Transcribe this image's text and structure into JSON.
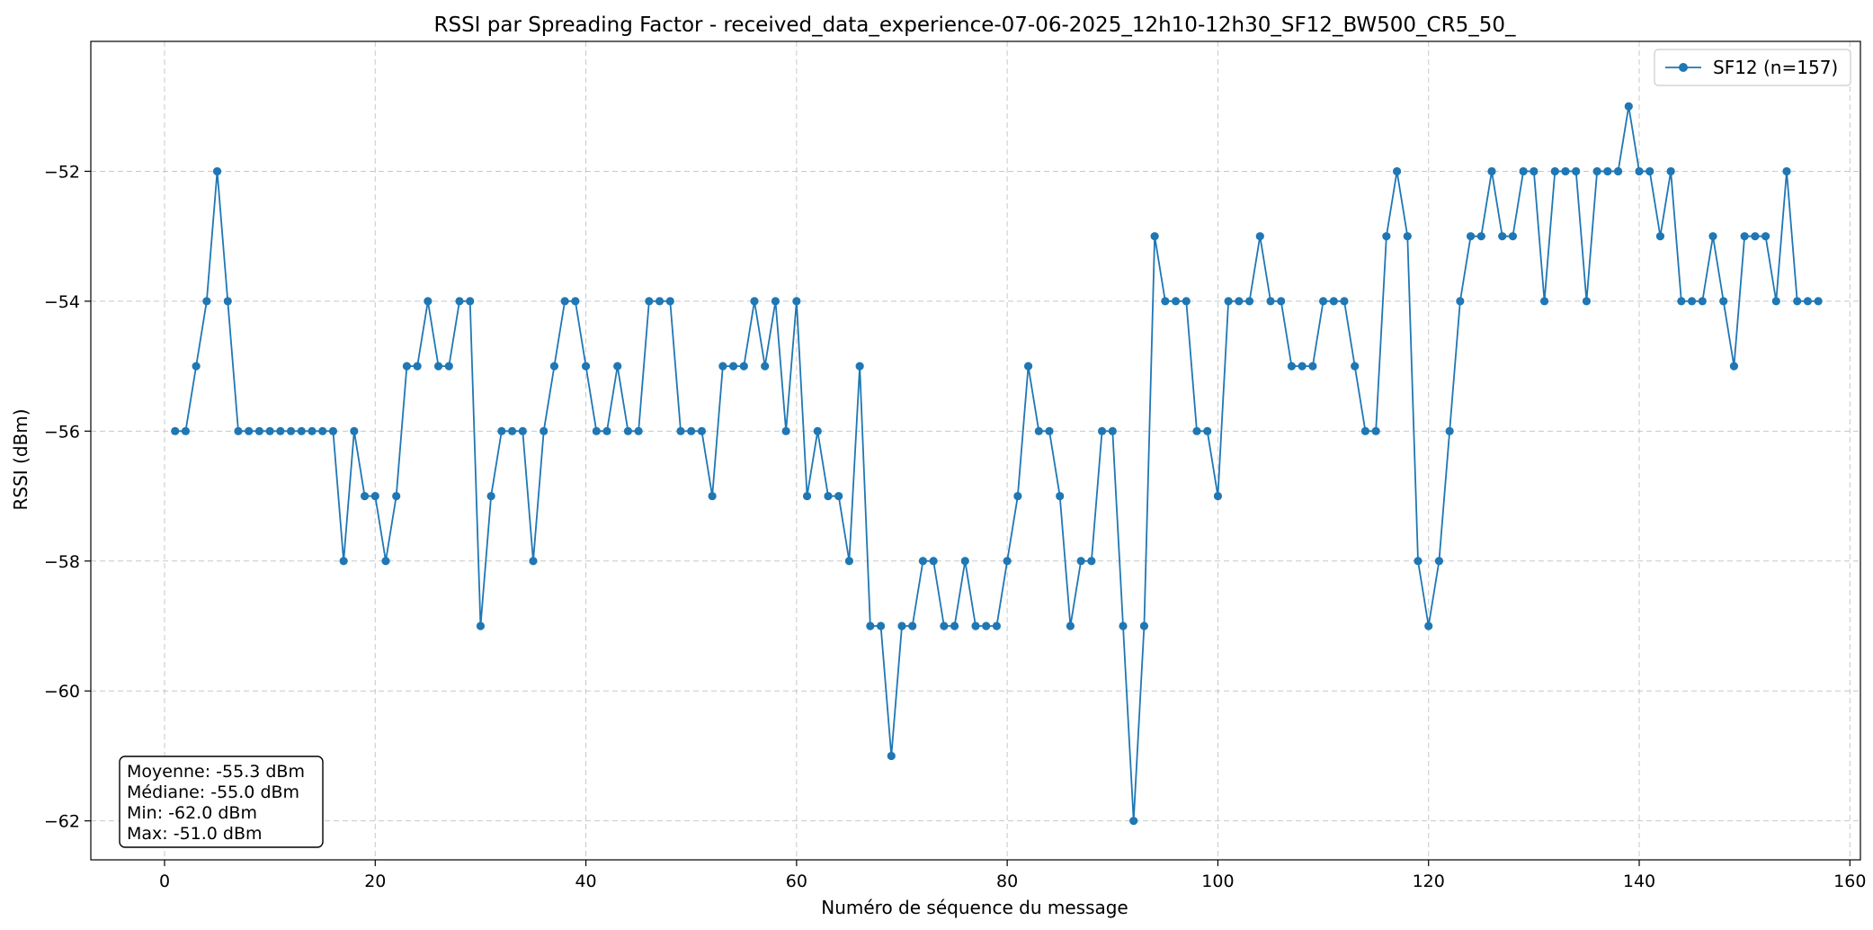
{
  "chart_data": {
    "type": "line",
    "title": "RSSI par Spreading Factor - received_data_experience-07-06-2025_12h10-12h30_SF12_BW500_CR5_50_",
    "xlabel": "Numéro de séquence du message",
    "ylabel": "RSSI (dBm)",
    "xlim": [
      -7,
      161
    ],
    "ylim": [
      -62.6,
      -50.0
    ],
    "xticks": [
      0,
      20,
      40,
      60,
      80,
      100,
      120,
      140,
      160
    ],
    "yticks": [
      -62,
      -60,
      -58,
      -56,
      -54,
      -52
    ],
    "xtick_labels": [
      "0",
      "20",
      "40",
      "60",
      "80",
      "100",
      "120",
      "140",
      "160"
    ],
    "ytick_labels": [
      "−62",
      "−60",
      "−58",
      "−56",
      "−54",
      "−52"
    ],
    "grid": true,
    "legend_position": "top-right",
    "color": "#1f77b4",
    "series": [
      {
        "name": "SF12 (n=157)",
        "x": [
          1,
          2,
          3,
          4,
          5,
          6,
          7,
          8,
          9,
          10,
          11,
          12,
          13,
          14,
          15,
          16,
          17,
          18,
          19,
          20,
          21,
          22,
          23,
          24,
          25,
          26,
          27,
          28,
          29,
          30,
          31,
          32,
          33,
          34,
          35,
          36,
          37,
          38,
          39,
          40,
          41,
          42,
          43,
          44,
          45,
          46,
          47,
          48,
          49,
          50,
          51,
          52,
          53,
          54,
          55,
          56,
          57,
          58,
          59,
          60,
          61,
          62,
          63,
          64,
          65,
          66,
          67,
          68,
          69,
          70,
          71,
          72,
          73,
          74,
          75,
          76,
          77,
          78,
          79,
          80,
          81,
          82,
          83,
          84,
          85,
          86,
          87,
          88,
          89,
          90,
          91,
          92,
          93,
          94,
          95,
          96,
          97,
          98,
          99,
          100,
          101,
          102,
          103,
          104,
          105,
          106,
          107,
          108,
          109,
          110,
          111,
          112,
          113,
          114,
          115,
          116,
          117,
          118,
          119,
          120,
          121,
          122,
          123,
          124,
          125,
          126,
          127,
          128,
          129,
          130,
          131,
          132,
          133,
          134,
          135,
          136,
          137,
          138,
          139,
          140,
          141,
          142,
          143,
          144,
          145,
          146,
          147,
          148,
          149,
          150,
          151,
          152,
          153,
          154,
          155,
          156,
          157
        ],
        "y": [
          -56,
          -56,
          -55,
          -54,
          -52,
          -54,
          -56,
          -56,
          -56,
          -56,
          -56,
          -56,
          -56,
          -56,
          -56,
          -56,
          -58,
          -56,
          -57,
          -57,
          -58,
          -57,
          -55,
          -55,
          -54,
          -55,
          -55,
          -54,
          -54,
          -59,
          -57,
          -56,
          -56,
          -56,
          -58,
          -56,
          -55,
          -54,
          -54,
          -55,
          -56,
          -56,
          -55,
          -56,
          -56,
          -54,
          -54,
          -54,
          -56,
          -56,
          -56,
          -57,
          -55,
          -55,
          -55,
          -54,
          -55,
          -54,
          -56,
          -54,
          -57,
          -56,
          -57,
          -57,
          -58,
          -55,
          -59,
          -59,
          -61,
          -59,
          -59,
          -58,
          -58,
          -59,
          -59,
          -58,
          -59,
          -59,
          -59,
          -58,
          -57,
          -55,
          -56,
          -56,
          -57,
          -59,
          -58,
          -58,
          -56,
          -56,
          -59,
          -62,
          -59,
          -53,
          -54,
          -54,
          -54,
          -56,
          -56,
          -57,
          -54,
          -54,
          -54,
          -53,
          -54,
          -54,
          -55,
          -55,
          -55,
          -54,
          -54,
          -54,
          -55,
          -56,
          -56,
          -53,
          -52,
          -53,
          -58,
          -59,
          -58,
          -56,
          -54,
          -53,
          -53,
          -52,
          -53,
          -53,
          -52,
          -52,
          -54,
          -52,
          -52,
          -52,
          -54,
          -52,
          -52,
          -52,
          -51,
          -52,
          -52,
          -53,
          -52,
          -54,
          -54,
          -54,
          -53,
          -54,
          -55,
          -53,
          -53,
          -53,
          -54,
          -52,
          -54,
          -54,
          -54
        ]
      }
    ],
    "stats": [
      "Moyenne: -55.3 dBm",
      "Médiane: -55.0 dBm",
      "Min: -62.0 dBm",
      "Max: -51.0 dBm"
    ]
  }
}
